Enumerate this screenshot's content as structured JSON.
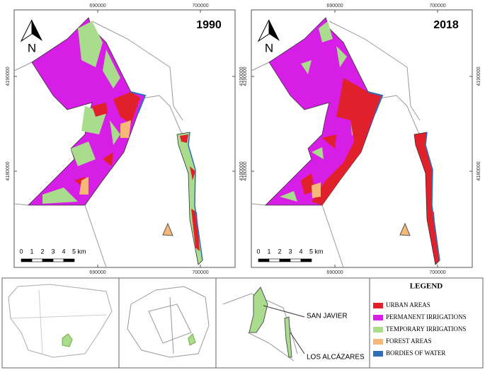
{
  "maps": [
    {
      "year": "1990",
      "x_ticks": [
        "690000",
        "700000"
      ],
      "y_ticks": [
        "4190000",
        "4180000"
      ]
    },
    {
      "year": "2018",
      "x_ticks": [
        "690000",
        "700000"
      ],
      "y_ticks": [
        "4190000",
        "4180000"
      ]
    }
  ],
  "north_label": "N",
  "scale_labels": [
    "0",
    "1",
    "2",
    "3",
    "4",
    "5 km"
  ],
  "legend": {
    "title": "LEGEND",
    "items": [
      {
        "label": "URBAN AREAS",
        "color": "#e0202a"
      },
      {
        "label": "PERMANENT IRRIGATIONS",
        "color": "#d61ee6"
      },
      {
        "label": "TEMPORARY IRRIGATIONS",
        "color": "#a9dc8c"
      },
      {
        "label": "FOREST AREAS",
        "color": "#f7b877"
      },
      {
        "label": "BORDIES OF WATER",
        "color": "#2f6fb5"
      }
    ]
  },
  "place_labels": [
    "SAN JAVIER",
    "LOS ALCÁZARES"
  ]
}
